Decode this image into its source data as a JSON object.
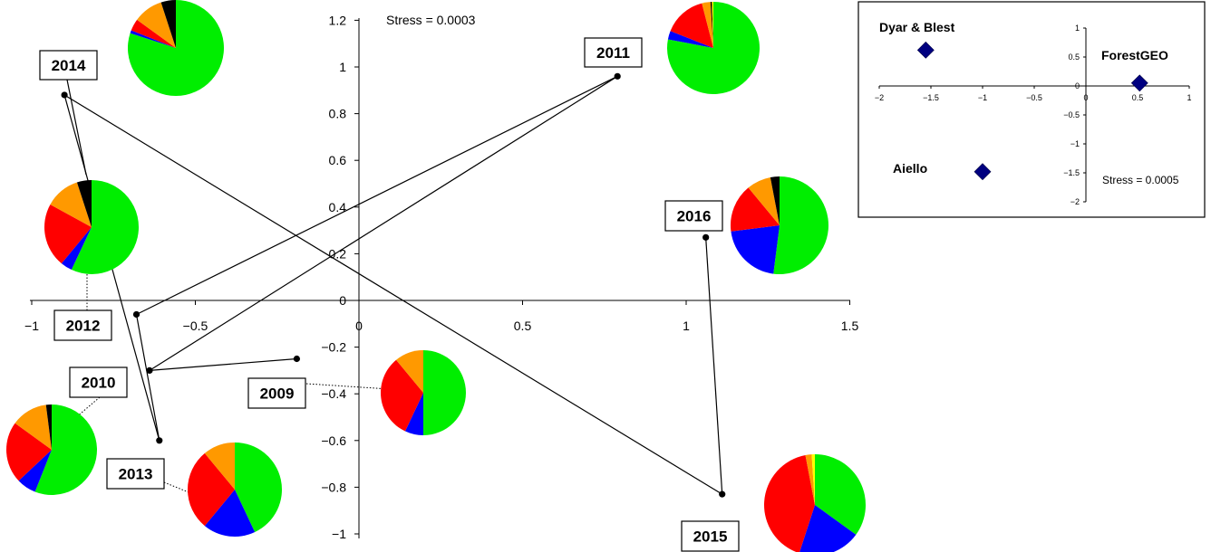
{
  "chart_data": [
    {
      "type": "scatter",
      "title": "",
      "xlabel": "",
      "ylabel": "",
      "xlim": [
        -1,
        1.5
      ],
      "ylim": [
        -1,
        1.2
      ],
      "x_ticks": [
        "−1",
        "−0.5",
        "0",
        "0.5",
        "1",
        "1.5"
      ],
      "x_tick_values": [
        -1,
        -0.5,
        0,
        0.5,
        1,
        1.5
      ],
      "y_ticks": [
        "−1",
        "−0.8",
        "−0.6",
        "−0.4",
        "−0.2",
        "0",
        "0.2",
        "0.4",
        "0.6",
        "0.8",
        "1",
        "1.2"
      ],
      "y_tick_values": [
        -1,
        -0.8,
        -0.6,
        -0.4,
        -0.2,
        0,
        0.2,
        0.4,
        0.6,
        0.8,
        1,
        1.2
      ],
      "annotation": "Stress = 0.0003",
      "trajectory_order": [
        "2009",
        "2010",
        "2011",
        "2012",
        "2013",
        "2014",
        "2015",
        "2016"
      ],
      "points": [
        {
          "label": "2009",
          "x": -0.19,
          "y": -0.25
        },
        {
          "label": "2010",
          "x": -0.64,
          "y": -0.3
        },
        {
          "label": "2011",
          "x": 0.79,
          "y": 0.96
        },
        {
          "label": "2012",
          "x": -0.68,
          "y": -0.06
        },
        {
          "label": "2013",
          "x": -0.61,
          "y": -0.6
        },
        {
          "label": "2014",
          "x": -0.9,
          "y": 0.88
        },
        {
          "label": "2015",
          "x": 1.11,
          "y": -0.83
        },
        {
          "label": "2016",
          "x": 1.06,
          "y": 0.27
        }
      ],
      "pie_colors": [
        "#00ee00",
        "#0000ff",
        "#ff0000",
        "#ff9900",
        "#000000",
        "#ffff00"
      ],
      "pies": [
        {
          "label": "2009",
          "slices": [
            0.5,
            0.07,
            0.32,
            0.11,
            0,
            0
          ]
        },
        {
          "label": "2010",
          "slices": [
            0.56,
            0.07,
            0.22,
            0.13,
            0.02,
            0
          ]
        },
        {
          "label": "2011",
          "slices": [
            0.78,
            0.03,
            0.15,
            0.03,
            0.005,
            0.005
          ]
        },
        {
          "label": "2012",
          "slices": [
            0.57,
            0.04,
            0.22,
            0.12,
            0.05,
            0
          ]
        },
        {
          "label": "2013",
          "slices": [
            0.43,
            0.18,
            0.28,
            0.11,
            0,
            0
          ]
        },
        {
          "label": "2014",
          "slices": [
            0.8,
            0.01,
            0.04,
            0.1,
            0.05,
            0
          ]
        },
        {
          "label": "2015",
          "slices": [
            0.35,
            0.2,
            0.42,
            0.02,
            0,
            0.01
          ]
        },
        {
          "label": "2016",
          "slices": [
            0.52,
            0.21,
            0.16,
            0.08,
            0.03,
            0
          ]
        }
      ]
    },
    {
      "type": "scatter",
      "title": "",
      "xlim": [
        -2,
        1
      ],
      "ylim": [
        -2,
        1
      ],
      "x_ticks": [
        "−2",
        "−1.5",
        "−1",
        "−0.5",
        "0",
        "0.5",
        "1"
      ],
      "x_tick_values": [
        -2,
        -1.5,
        -1,
        -0.5,
        0,
        0.5,
        1
      ],
      "y_ticks": [
        "1",
        "0.5",
        "0",
        "−0.5",
        "−1",
        "−1.5",
        "−2"
      ],
      "y_tick_values": [
        1,
        0.5,
        0,
        -0.5,
        -1,
        -1.5,
        -2
      ],
      "annotation": "Stress = 0.0005",
      "marker_color": "#000080",
      "points": [
        {
          "label": "Dyar & Blest",
          "x": -1.55,
          "y": 0.62
        },
        {
          "label": "ForestGEO",
          "x": 0.52,
          "y": 0.05
        },
        {
          "label": "Aiello",
          "x": -1.0,
          "y": -1.48
        }
      ]
    }
  ]
}
